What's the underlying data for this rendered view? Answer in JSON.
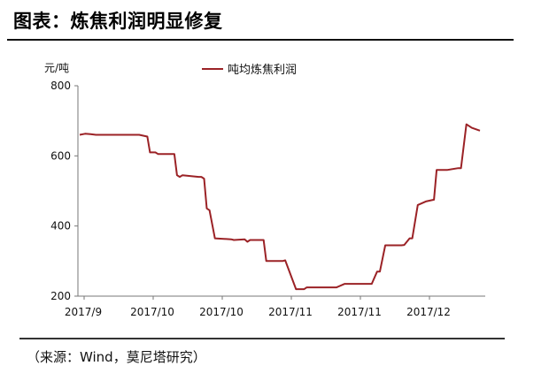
{
  "figure": {
    "title": "图表：炼焦利润明显修复",
    "source": "（来源：Wind，莫尼塔研究）"
  },
  "chart_data": {
    "type": "line",
    "title": "图表：炼焦利润明显修复",
    "ylabel": "元/吨",
    "xlabel": "",
    "ylim": [
      200,
      800
    ],
    "yticks": [
      200,
      400,
      600,
      800
    ],
    "xtick_labels": [
      "2017/9",
      "2017/10",
      "2017/10",
      "2017/11",
      "2017/11",
      "2017/12"
    ],
    "grid": false,
    "legend_position": "top-center",
    "series": [
      {
        "name": "吨均炼焦利润",
        "color": "#9b2226",
        "points": [
          [
            0,
            660
          ],
          [
            2,
            663
          ],
          [
            4,
            662
          ],
          [
            6,
            660
          ],
          [
            10,
            660
          ],
          [
            16,
            660
          ],
          [
            22,
            660
          ],
          [
            25,
            655
          ],
          [
            26,
            610
          ],
          [
            28,
            610
          ],
          [
            29,
            605
          ],
          [
            35,
            605
          ],
          [
            36,
            545
          ],
          [
            37,
            540
          ],
          [
            38,
            545
          ],
          [
            44,
            540
          ],
          [
            45,
            540
          ],
          [
            46,
            535
          ],
          [
            47,
            450
          ],
          [
            48,
            445
          ],
          [
            50,
            365
          ],
          [
            56,
            362
          ],
          [
            57,
            360
          ],
          [
            61,
            362
          ],
          [
            62,
            355
          ],
          [
            63,
            360
          ],
          [
            68,
            360
          ],
          [
            69,
            300
          ],
          [
            75,
            300
          ],
          [
            76,
            302
          ],
          [
            80,
            220
          ],
          [
            83,
            220
          ],
          [
            84,
            225
          ],
          [
            90,
            225
          ],
          [
            95,
            225
          ],
          [
            98,
            235
          ],
          [
            108,
            235
          ],
          [
            110,
            270
          ],
          [
            111,
            270
          ],
          [
            113,
            345
          ],
          [
            119,
            345
          ],
          [
            120,
            346
          ],
          [
            122,
            365
          ],
          [
            123,
            365
          ],
          [
            125,
            460
          ],
          [
            128,
            470
          ],
          [
            131,
            475
          ],
          [
            132,
            560
          ],
          [
            135,
            560
          ],
          [
            136,
            560
          ],
          [
            140,
            565
          ],
          [
            141,
            565
          ],
          [
            143,
            690
          ],
          [
            145,
            680
          ],
          [
            148,
            672
          ]
        ]
      }
    ]
  }
}
